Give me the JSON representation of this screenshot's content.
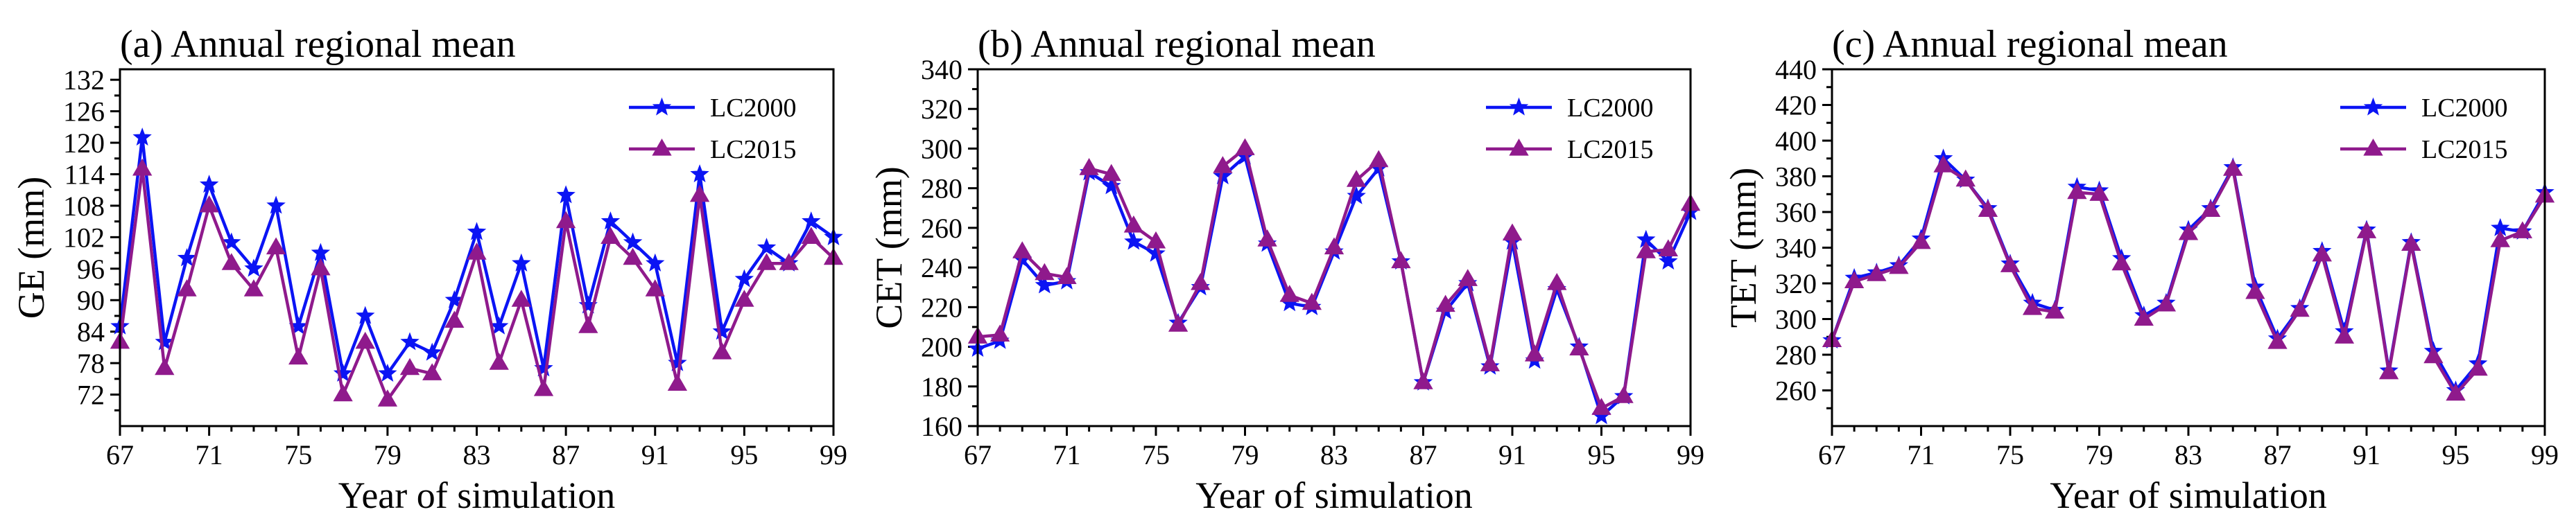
{
  "colors": {
    "lc2000": "#0b14f4",
    "lc2015": "#8f1a8c",
    "axis": "#000000"
  },
  "chart_data": [
    {
      "type": "line",
      "title": "(a) Annual regional mean",
      "xlabel": "Year of simulation",
      "ylabel": "GE (mm)",
      "xlim": [
        67,
        99
      ],
      "ylim": [
        66,
        134
      ],
      "xticks": [
        67,
        71,
        75,
        79,
        83,
        87,
        91,
        95,
        99
      ],
      "yticks": [
        72,
        78,
        84,
        90,
        96,
        102,
        108,
        114,
        120,
        126,
        132
      ],
      "legend_position": "top-right",
      "x": [
        67,
        68,
        69,
        70,
        71,
        72,
        73,
        74,
        75,
        76,
        77,
        78,
        79,
        80,
        81,
        82,
        83,
        84,
        85,
        86,
        87,
        88,
        89,
        90,
        91,
        92,
        93,
        94,
        95,
        96,
        97,
        98,
        99
      ],
      "series": [
        {
          "name": "LC2000",
          "marker": "star",
          "values": [
            85,
            121,
            82,
            98,
            112,
            101,
            96,
            108,
            85,
            99,
            76,
            87,
            76,
            82,
            80,
            90,
            103,
            85,
            97,
            77,
            110,
            89,
            105,
            101,
            97,
            78,
            114,
            84,
            94,
            100,
            97,
            105,
            102
          ]
        },
        {
          "name": "LC2015",
          "marker": "triangle",
          "values": [
            82,
            115,
            77,
            92,
            108,
            97,
            92,
            100,
            79,
            96,
            72,
            82,
            71,
            77,
            76,
            86,
            99,
            78,
            90,
            73,
            105,
            85,
            102,
            98,
            92,
            74,
            110,
            80,
            90,
            97,
            97,
            102,
            98
          ]
        }
      ]
    },
    {
      "type": "line",
      "title": "(b) Annual regional mean",
      "xlabel": "Year of simulation",
      "ylabel": "CET (mm)",
      "xlim": [
        67,
        99
      ],
      "ylim": [
        160,
        340
      ],
      "xticks": [
        67,
        71,
        75,
        79,
        83,
        87,
        91,
        95,
        99
      ],
      "yticks": [
        160,
        180,
        200,
        220,
        240,
        260,
        280,
        300,
        320,
        340
      ],
      "legend_position": "top-right",
      "x": [
        67,
        68,
        69,
        70,
        71,
        72,
        73,
        74,
        75,
        76,
        77,
        78,
        79,
        80,
        81,
        82,
        83,
        84,
        85,
        86,
        87,
        88,
        89,
        90,
        91,
        92,
        93,
        94,
        95,
        96,
        97,
        98,
        99
      ],
      "series": [
        {
          "name": "LC2000",
          "marker": "star",
          "values": [
            199,
            203,
            244,
            231,
            233,
            288,
            281,
            253,
            247,
            212,
            230,
            286,
            296,
            252,
            222,
            220,
            248,
            276,
            290,
            243,
            182,
            218,
            232,
            190,
            253,
            193,
            229,
            200,
            165,
            175,
            254,
            243,
            268
          ]
        },
        {
          "name": "LC2015",
          "marker": "triangle",
          "values": [
            205,
            206,
            248,
            237,
            235,
            290,
            287,
            261,
            253,
            211,
            232,
            291,
            300,
            254,
            226,
            222,
            250,
            284,
            294,
            243,
            182,
            221,
            234,
            191,
            257,
            196,
            232,
            199,
            169,
            175,
            248,
            249,
            272
          ]
        }
      ]
    },
    {
      "type": "line",
      "title": "(c) Annual regional mean",
      "xlabel": "Year of simulation",
      "ylabel": "TET (mm)",
      "xlim": [
        67,
        99
      ],
      "ylim": [
        240,
        440
      ],
      "xticks": [
        67,
        71,
        75,
        79,
        83,
        87,
        91,
        95,
        99
      ],
      "yticks": [
        260,
        280,
        300,
        320,
        340,
        360,
        380,
        400,
        420,
        440
      ],
      "legend_position": "top-right",
      "x": [
        67,
        68,
        69,
        70,
        71,
        72,
        73,
        74,
        75,
        76,
        77,
        78,
        79,
        80,
        81,
        82,
        83,
        84,
        85,
        86,
        87,
        88,
        89,
        90,
        91,
        92,
        93,
        94,
        95,
        96,
        97,
        98,
        99
      ],
      "series": [
        {
          "name": "LC2000",
          "marker": "star",
          "values": [
            288,
            323,
            326,
            330,
            345,
            390,
            378,
            362,
            331,
            309,
            305,
            374,
            372,
            334,
            302,
            309,
            350,
            362,
            385,
            318,
            289,
            306,
            338,
            293,
            350,
            271,
            343,
            282,
            260,
            275,
            351,
            349,
            371
          ]
        },
        {
          "name": "LC2015",
          "marker": "triangle",
          "values": [
            288,
            321,
            325,
            329,
            343,
            386,
            378,
            361,
            330,
            306,
            304,
            371,
            370,
            331,
            300,
            308,
            348,
            361,
            384,
            315,
            287,
            305,
            336,
            290,
            349,
            270,
            342,
            279,
            258,
            272,
            344,
            349,
            369
          ]
        }
      ]
    }
  ]
}
